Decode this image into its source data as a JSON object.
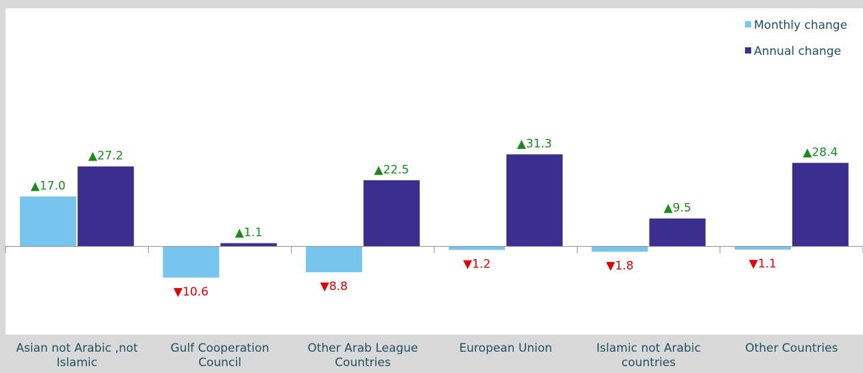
{
  "chart_data": {
    "type": "bar",
    "categories": [
      "Asian not Arabic ,not Islamic",
      "Gulf Cooperation Council",
      "Other Arab League Countries",
      "European Union",
      "Islamic not Arabic countries",
      "Other Countries"
    ],
    "series": [
      {
        "name": "Monthly change",
        "color": "#75c5ee",
        "values": [
          17.0,
          -10.6,
          -8.8,
          -1.2,
          -1.8,
          -1.1
        ],
        "value_labels": [
          "▲17.0",
          "▼10.6",
          "▼8.8",
          "▼1.2",
          "▼1.8",
          "▼1.1"
        ]
      },
      {
        "name": "Annual change",
        "color": "#3b2e8e",
        "values": [
          27.2,
          1.1,
          22.5,
          31.3,
          9.5,
          28.4
        ],
        "value_labels": [
          "▲27.2",
          "▲1.1",
          "▲22.5",
          "▲31.3",
          "▲9.5",
          "▲28.4"
        ]
      }
    ],
    "ylim": [
      -30,
      81
    ],
    "positive_color": "#1a8a1a",
    "negative_color": "#e00000",
    "legend": "top-right"
  }
}
